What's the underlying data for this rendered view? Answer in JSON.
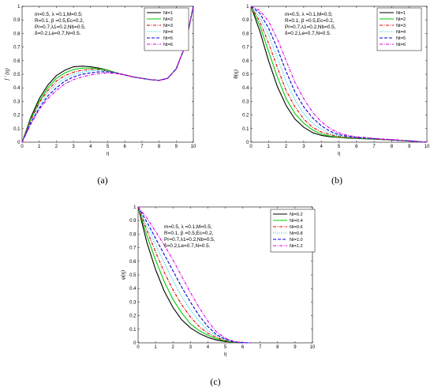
{
  "chart_data": [
    {
      "type": "line",
      "panel_label": "(a)",
      "xlabel": "η",
      "ylabel": "f ′ (η)",
      "xlim": [
        0,
        10
      ],
      "ylim": [
        0,
        1
      ],
      "xticks": [
        "0",
        "1",
        "2",
        "3",
        "4",
        "5",
        "6",
        "7",
        "8",
        "9",
        "10"
      ],
      "yticks": [
        "0",
        "0.1",
        "0.2",
        "0.3",
        "0.4",
        "0.5",
        "0.6",
        "0.7",
        "0.8",
        "0.9",
        "1"
      ],
      "annotation": [
        "m=0.5, λ =0.1,M=0.5;",
        "R=0.1, β =0.5,Ec=0.2,",
        "Pr=0.7,λ1=0.2,Nb=0.5,",
        "δ=0.2,Le=0.7,N=0.5."
      ],
      "legend_position": "top-right",
      "x": [
        0,
        0.5,
        1,
        1.5,
        2,
        2.5,
        3,
        3.5,
        4,
        4.5,
        5,
        5.5,
        6,
        6.5,
        7,
        7.5,
        8,
        8.5,
        9,
        9.5,
        10
      ],
      "series": [
        {
          "name": "Nt=1",
          "color": "#000000",
          "dash": "solid",
          "values": [
            0,
            0.18,
            0.32,
            0.42,
            0.49,
            0.53,
            0.555,
            0.56,
            0.555,
            0.545,
            0.53,
            0.51,
            0.495,
            0.48,
            0.47,
            0.46,
            0.455,
            0.47,
            0.54,
            0.7,
            1.0
          ]
        },
        {
          "name": "Nt=2",
          "color": "#00cc00",
          "dash": "solid",
          "values": [
            0,
            0.17,
            0.3,
            0.4,
            0.47,
            0.51,
            0.535,
            0.545,
            0.545,
            0.54,
            0.53,
            0.51,
            0.495,
            0.48,
            0.47,
            0.46,
            0.455,
            0.47,
            0.54,
            0.7,
            1.0
          ]
        },
        {
          "name": "Nt=3",
          "color": "#dd0000",
          "dash": "dashdot",
          "values": [
            0,
            0.16,
            0.29,
            0.38,
            0.45,
            0.49,
            0.515,
            0.53,
            0.535,
            0.535,
            0.525,
            0.51,
            0.495,
            0.48,
            0.47,
            0.46,
            0.455,
            0.47,
            0.54,
            0.7,
            1.0
          ]
        },
        {
          "name": "Nt=4",
          "color": "#00cccc",
          "dash": "dotted",
          "values": [
            0,
            0.15,
            0.27,
            0.36,
            0.43,
            0.47,
            0.5,
            0.515,
            0.525,
            0.528,
            0.522,
            0.51,
            0.495,
            0.48,
            0.47,
            0.46,
            0.455,
            0.47,
            0.54,
            0.7,
            1.0
          ]
        },
        {
          "name": "Nt=5",
          "color": "#0000dd",
          "dash": "dashed",
          "values": [
            0,
            0.14,
            0.25,
            0.34,
            0.4,
            0.45,
            0.48,
            0.5,
            0.51,
            0.518,
            0.518,
            0.508,
            0.495,
            0.48,
            0.47,
            0.46,
            0.455,
            0.47,
            0.54,
            0.7,
            1.0
          ]
        },
        {
          "name": "Nt=6",
          "color": "#dd00dd",
          "dash": "dashdot",
          "values": [
            0,
            0.13,
            0.24,
            0.32,
            0.38,
            0.43,
            0.46,
            0.48,
            0.495,
            0.505,
            0.51,
            0.505,
            0.495,
            0.48,
            0.47,
            0.46,
            0.455,
            0.47,
            0.54,
            0.7,
            1.0
          ]
        }
      ]
    },
    {
      "type": "line",
      "panel_label": "(b)",
      "xlabel": "η",
      "ylabel": "θ(η)",
      "xlim": [
        0,
        10
      ],
      "ylim": [
        0,
        1
      ],
      "xticks": [
        "0",
        "1",
        "2",
        "3",
        "4",
        "5",
        "6",
        "7",
        "8",
        "9",
        "10"
      ],
      "yticks": [
        "0",
        "0.1",
        "0.2",
        "0.3",
        "0.4",
        "0.5",
        "0.6",
        "0.7",
        "0.8",
        "0.9",
        "1"
      ],
      "annotation": [
        "m=0.5, λ =0.1,M=0.5;",
        "R=0.1, β =0.5,Ec=0.2,",
        "Pr=0.7,λ1=0.2,Nb=0.5,",
        "δ=0.2,Le=0.7,N=0.5."
      ],
      "legend_position": "top-right",
      "x": [
        0,
        0.5,
        1,
        1.5,
        2,
        2.5,
        3,
        3.5,
        4,
        4.5,
        5,
        5.5,
        6,
        7,
        8,
        9,
        10
      ],
      "series": [
        {
          "name": "Nt=1",
          "color": "#000000",
          "dash": "solid",
          "values": [
            1,
            0.82,
            0.6,
            0.41,
            0.27,
            0.17,
            0.11,
            0.07,
            0.05,
            0.04,
            0.035,
            0.03,
            0.028,
            0.022,
            0.016,
            0.009,
            0
          ]
        },
        {
          "name": "Nt=2",
          "color": "#00cc00",
          "dash": "solid",
          "values": [
            1,
            0.86,
            0.67,
            0.48,
            0.32,
            0.21,
            0.14,
            0.09,
            0.06,
            0.045,
            0.037,
            0.032,
            0.029,
            0.023,
            0.016,
            0.009,
            0
          ]
        },
        {
          "name": "Nt=3",
          "color": "#dd0000",
          "dash": "dashdot",
          "values": [
            1,
            0.89,
            0.73,
            0.55,
            0.38,
            0.26,
            0.17,
            0.11,
            0.075,
            0.055,
            0.042,
            0.035,
            0.031,
            0.024,
            0.017,
            0.009,
            0
          ]
        },
        {
          "name": "Nt=4",
          "color": "#00cccc",
          "dash": "dotted",
          "values": [
            1,
            0.92,
            0.79,
            0.62,
            0.45,
            0.31,
            0.21,
            0.14,
            0.095,
            0.065,
            0.048,
            0.038,
            0.032,
            0.025,
            0.017,
            0.009,
            0
          ]
        },
        {
          "name": "Nt=5",
          "color": "#0000dd",
          "dash": "dashed",
          "values": [
            1,
            0.95,
            0.84,
            0.69,
            0.52,
            0.37,
            0.26,
            0.18,
            0.12,
            0.08,
            0.056,
            0.043,
            0.035,
            0.026,
            0.018,
            0.01,
            0
          ]
        },
        {
          "name": "Nt=6",
          "color": "#dd00dd",
          "dash": "dashdot",
          "values": [
            1,
            0.97,
            0.89,
            0.76,
            0.6,
            0.44,
            0.32,
            0.22,
            0.15,
            0.1,
            0.068,
            0.05,
            0.04,
            0.028,
            0.019,
            0.01,
            0
          ]
        }
      ]
    },
    {
      "type": "line",
      "panel_label": "(c)",
      "xlabel": "η",
      "ylabel": "φ(η)",
      "xlim": [
        0,
        10
      ],
      "ylim": [
        0,
        1
      ],
      "xticks": [
        "0",
        "1",
        "2",
        "3",
        "4",
        "5",
        "6",
        "7",
        "8",
        "9",
        "10"
      ],
      "yticks": [
        "0",
        "0.1",
        "0.2",
        "0.3",
        "0.4",
        "0.5",
        "0.6",
        "0.7",
        "0.8",
        "0.9",
        "1"
      ],
      "annotation": [
        "m=0.5, λ =0.1,M=0.5;",
        "R=0.1, β =0.5,Ec=0.2,",
        "Pr=0.7,λ1=0.2,Nb=0.5,",
        "δ=0.2,Le=0.7,N=0.5."
      ],
      "legend_position": "top-right",
      "x": [
        0,
        0.5,
        1,
        1.5,
        2,
        2.5,
        3,
        3.5,
        4,
        4.5,
        5,
        5.5,
        6,
        6.5
      ],
      "series": [
        {
          "name": "Nt=0.2",
          "color": "#000000",
          "dash": "solid",
          "values": [
            1,
            0.74,
            0.54,
            0.38,
            0.26,
            0.17,
            0.11,
            0.07,
            0.04,
            0.02,
            0.01,
            0.003,
            0,
            0
          ]
        },
        {
          "name": "Nt=0.4",
          "color": "#00cc00",
          "dash": "solid",
          "values": [
            1,
            0.79,
            0.61,
            0.45,
            0.32,
            0.22,
            0.14,
            0.09,
            0.055,
            0.03,
            0.013,
            0.004,
            0,
            0
          ]
        },
        {
          "name": "Nt=0.6",
          "color": "#dd0000",
          "dash": "dashdot",
          "values": [
            1,
            0.83,
            0.67,
            0.52,
            0.39,
            0.28,
            0.19,
            0.12,
            0.07,
            0.04,
            0.017,
            0.005,
            0,
            0
          ]
        },
        {
          "name": "Nt=0.8",
          "color": "#00cccc",
          "dash": "dotted",
          "values": [
            1,
            0.86,
            0.72,
            0.59,
            0.46,
            0.34,
            0.24,
            0.16,
            0.09,
            0.05,
            0.022,
            0.006,
            0.001,
            0
          ]
        },
        {
          "name": "Nt=1.0",
          "color": "#0000dd",
          "dash": "dashed",
          "values": [
            1,
            0.89,
            0.77,
            0.65,
            0.53,
            0.41,
            0.3,
            0.2,
            0.12,
            0.06,
            0.027,
            0.008,
            0.001,
            0
          ]
        },
        {
          "name": "Nt=1.2",
          "color": "#dd00dd",
          "dash": "dashdot",
          "values": [
            1,
            0.92,
            0.82,
            0.72,
            0.61,
            0.49,
            0.37,
            0.26,
            0.16,
            0.08,
            0.035,
            0.01,
            0.002,
            0
          ]
        }
      ]
    }
  ]
}
